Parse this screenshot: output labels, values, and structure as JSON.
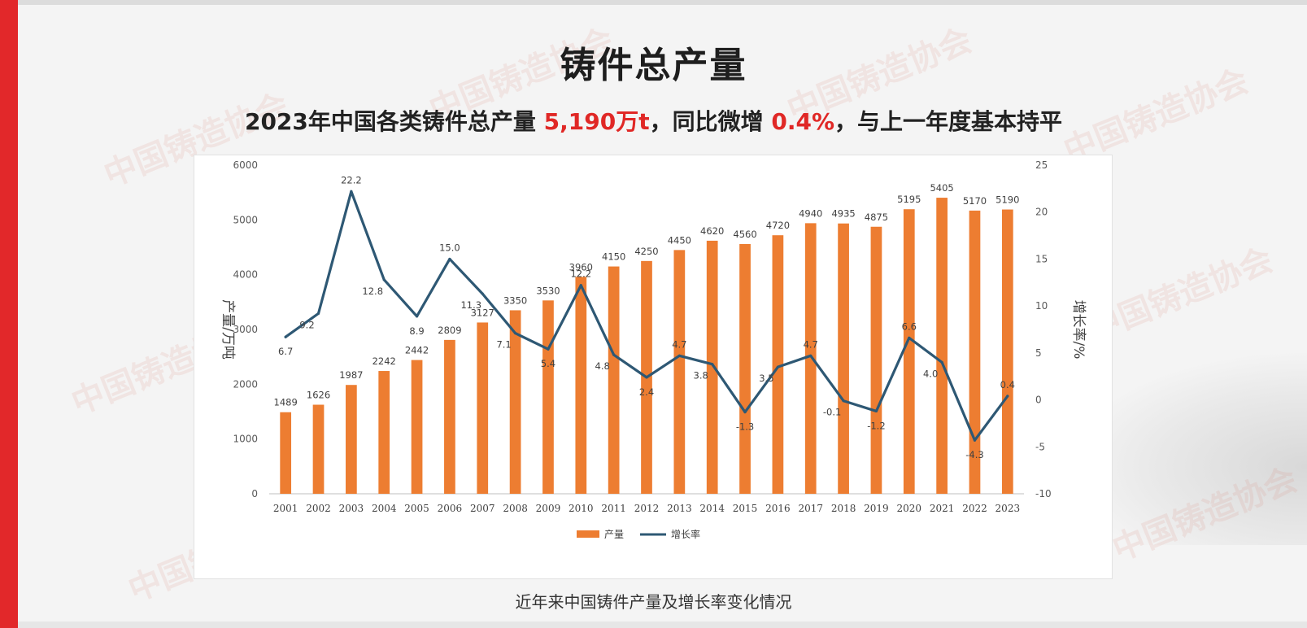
{
  "page": {
    "title": "铸件总产量",
    "subtitle_parts": {
      "p1": "2023年中国各类铸件总产量 ",
      "v1": "5,190万t",
      "p2": "，同比微增 ",
      "v2": "0.4%",
      "p3": "，与上一年度基本持平"
    },
    "caption": "近年来中国铸件产量及增长率变化情况",
    "watermark": "中国铸造协会"
  },
  "chart_data": {
    "type": "bar",
    "categories": [
      "2001",
      "2002",
      "2003",
      "2004",
      "2005",
      "2006",
      "2007",
      "2008",
      "2009",
      "2010",
      "2011",
      "2012",
      "2013",
      "2014",
      "2015",
      "2016",
      "2017",
      "2018",
      "2019",
      "2020",
      "2021",
      "2022",
      "2023"
    ],
    "series": [
      {
        "name": "产量",
        "type": "bar",
        "axis": "left",
        "color": "#ed7d31",
        "values": [
          1489,
          1626,
          1987,
          2242,
          2442,
          2809,
          3127,
          3350,
          3530,
          3960,
          4150,
          4250,
          4450,
          4620,
          4560,
          4720,
          4940,
          4935,
          4875,
          5195,
          5405,
          5170,
          5190
        ]
      },
      {
        "name": "增长率",
        "type": "line",
        "axis": "right",
        "color": "#2e5874",
        "values": [
          6.7,
          9.2,
          22.2,
          12.8,
          8.9,
          15.0,
          11.3,
          7.1,
          5.4,
          12.2,
          4.8,
          2.4,
          4.7,
          3.8,
          -1.3,
          3.5,
          4.7,
          -0.1,
          -1.2,
          6.6,
          4.0,
          -4.3,
          0.4
        ]
      }
    ],
    "bar_labels": [
      "1489",
      "1626",
      "1987",
      "2242",
      "2442",
      "2809",
      "3127",
      "3350",
      "3530",
      "3960",
      "4150",
      "4250",
      "4450",
      "4620",
      "4560",
      "4720",
      "4940",
      "4935",
      "4875",
      "5195",
      "5405",
      "5170",
      "5190"
    ],
    "line_labels": [
      "6.7",
      "9.2",
      "22.2",
      "12.8",
      "8.9",
      "15.0",
      "11.3",
      "7.1",
      "5.4",
      "12.2",
      "4.8",
      "2.4",
      "4.7",
      "3.8",
      "-1.3",
      "3.5",
      "4.7",
      "-0.1",
      "-1.2",
      "6.6",
      "4.0",
      "-4.3",
      "0.4"
    ],
    "ylabel": "产量/万吨",
    "y2label": "增长率/%",
    "ylim": [
      0,
      6000
    ],
    "yticks": [
      "0",
      "1000",
      "2000",
      "3000",
      "4000",
      "5000",
      "6000"
    ],
    "y2lim": [
      -10,
      25
    ],
    "y2ticks": [
      "-10",
      "-5",
      "0",
      "5",
      "10",
      "15",
      "20",
      "25"
    ],
    "legend_position": "bottom",
    "grid": false
  }
}
